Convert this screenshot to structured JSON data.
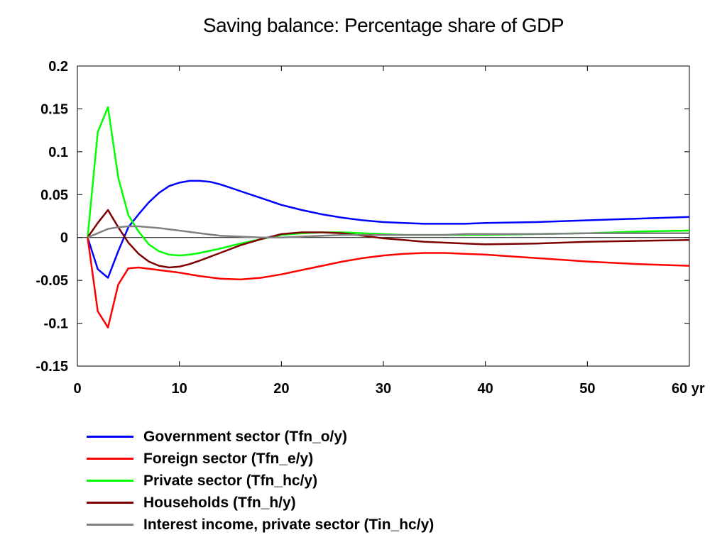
{
  "chart_data": {
    "type": "line",
    "title": "Saving balance: Percentage share of GDP",
    "xlabel": "",
    "ylabel": "",
    "xlim": [
      0,
      60
    ],
    "ylim": [
      -0.15,
      0.2
    ],
    "x_ticks": [
      "0",
      "10",
      "20",
      "30",
      "40",
      "50",
      "60 yr"
    ],
    "x_tick_values": [
      0,
      10,
      20,
      30,
      40,
      50,
      60
    ],
    "y_ticks": [
      "0.2",
      "0.15",
      "0.1",
      "0.05",
      "0",
      "-0.05",
      "-0.1",
      "-0.15"
    ],
    "y_tick_values": [
      0.2,
      0.15,
      0.1,
      0.05,
      0,
      -0.05,
      -0.1,
      -0.15
    ],
    "grid": false,
    "zero_line": true,
    "legend_position": "bottom",
    "series": [
      {
        "name": "Government sector (Tfn_o/y)",
        "color": "#0000ff",
        "points": [
          [
            1,
            0
          ],
          [
            2,
            -0.037
          ],
          [
            3,
            -0.047
          ],
          [
            4,
            -0.016
          ],
          [
            5,
            0.012
          ],
          [
            6,
            0.027
          ],
          [
            7,
            0.041
          ],
          [
            8,
            0.052
          ],
          [
            9,
            0.06
          ],
          [
            10,
            0.064
          ],
          [
            11,
            0.066
          ],
          [
            12,
            0.066
          ],
          [
            13,
            0.065
          ],
          [
            14,
            0.062
          ],
          [
            15,
            0.058
          ],
          [
            16,
            0.054
          ],
          [
            18,
            0.046
          ],
          [
            20,
            0.038
          ],
          [
            22,
            0.032
          ],
          [
            24,
            0.027
          ],
          [
            26,
            0.023
          ],
          [
            28,
            0.02
          ],
          [
            30,
            0.018
          ],
          [
            32,
            0.017
          ],
          [
            34,
            0.016
          ],
          [
            36,
            0.016
          ],
          [
            38,
            0.016
          ],
          [
            40,
            0.017
          ],
          [
            45,
            0.018
          ],
          [
            50,
            0.02
          ],
          [
            55,
            0.022
          ],
          [
            60,
            0.024
          ]
        ]
      },
      {
        "name": "Foreign sector (Tfn_e/y)",
        "color": "#ff0000",
        "points": [
          [
            1,
            0
          ],
          [
            2,
            -0.086
          ],
          [
            3,
            -0.105
          ],
          [
            4,
            -0.055
          ],
          [
            5,
            -0.036
          ],
          [
            6,
            -0.035
          ],
          [
            8,
            -0.038
          ],
          [
            10,
            -0.041
          ],
          [
            12,
            -0.045
          ],
          [
            14,
            -0.048
          ],
          [
            16,
            -0.049
          ],
          [
            18,
            -0.047
          ],
          [
            20,
            -0.043
          ],
          [
            22,
            -0.038
          ],
          [
            24,
            -0.033
          ],
          [
            26,
            -0.028
          ],
          [
            28,
            -0.024
          ],
          [
            30,
            -0.021
          ],
          [
            32,
            -0.019
          ],
          [
            34,
            -0.018
          ],
          [
            36,
            -0.018
          ],
          [
            38,
            -0.019
          ],
          [
            40,
            -0.02
          ],
          [
            45,
            -0.024
          ],
          [
            50,
            -0.028
          ],
          [
            55,
            -0.031
          ],
          [
            60,
            -0.033
          ]
        ]
      },
      {
        "name": "Private sector (Tfn_hc/y)",
        "color": "#00ff00",
        "points": [
          [
            1,
            0
          ],
          [
            2,
            0.123
          ],
          [
            3,
            0.152
          ],
          [
            4,
            0.07
          ],
          [
            5,
            0.026
          ],
          [
            6,
            0.007
          ],
          [
            7,
            -0.008
          ],
          [
            8,
            -0.016
          ],
          [
            9,
            -0.02
          ],
          [
            10,
            -0.021
          ],
          [
            11,
            -0.02
          ],
          [
            12,
            -0.018
          ],
          [
            14,
            -0.013
          ],
          [
            16,
            -0.007
          ],
          [
            18,
            -0.002
          ],
          [
            20,
            0.003
          ],
          [
            22,
            0.005
          ],
          [
            24,
            0.006
          ],
          [
            26,
            0.006
          ],
          [
            28,
            0.005
          ],
          [
            30,
            0.004
          ],
          [
            32,
            0.003
          ],
          [
            34,
            0.003
          ],
          [
            36,
            0.003
          ],
          [
            38,
            0.003
          ],
          [
            40,
            0.003
          ],
          [
            45,
            0.004
          ],
          [
            50,
            0.005
          ],
          [
            55,
            0.007
          ],
          [
            60,
            0.008
          ]
        ]
      },
      {
        "name": "Households (Tfn_h/y)",
        "color": "#7f0000",
        "points": [
          [
            1,
            0
          ],
          [
            2,
            0.017
          ],
          [
            3,
            0.032
          ],
          [
            4,
            0.012
          ],
          [
            5,
            -0.006
          ],
          [
            6,
            -0.019
          ],
          [
            7,
            -0.028
          ],
          [
            8,
            -0.033
          ],
          [
            9,
            -0.035
          ],
          [
            10,
            -0.034
          ],
          [
            11,
            -0.031
          ],
          [
            12,
            -0.027
          ],
          [
            14,
            -0.018
          ],
          [
            16,
            -0.009
          ],
          [
            18,
            -0.002
          ],
          [
            20,
            0.004
          ],
          [
            22,
            0.006
          ],
          [
            24,
            0.006
          ],
          [
            26,
            0.005
          ],
          [
            28,
            0.002
          ],
          [
            30,
            -0.001
          ],
          [
            32,
            -0.003
          ],
          [
            34,
            -0.005
          ],
          [
            36,
            -0.006
          ],
          [
            38,
            -0.007
          ],
          [
            40,
            -0.008
          ],
          [
            45,
            -0.007
          ],
          [
            50,
            -0.005
          ],
          [
            55,
            -0.004
          ],
          [
            60,
            -0.003
          ]
        ]
      },
      {
        "name": "Interest income, private sector (Tin_hc/y)",
        "color": "#808080",
        "points": [
          [
            1,
            0
          ],
          [
            2,
            0.005
          ],
          [
            3,
            0.01
          ],
          [
            4,
            0.012
          ],
          [
            5,
            0.013
          ],
          [
            6,
            0.013
          ],
          [
            7,
            0.012
          ],
          [
            8,
            0.011
          ],
          [
            10,
            0.008
          ],
          [
            12,
            0.005
          ],
          [
            14,
            0.002
          ],
          [
            16,
            0.001
          ],
          [
            18,
            0
          ],
          [
            20,
            0
          ],
          [
            22,
            0.001
          ],
          [
            24,
            0.002
          ],
          [
            26,
            0.003
          ],
          [
            28,
            0.003
          ],
          [
            30,
            0.003
          ],
          [
            32,
            0.003
          ],
          [
            34,
            0.003
          ],
          [
            36,
            0.003
          ],
          [
            38,
            0.004
          ],
          [
            40,
            0.004
          ],
          [
            45,
            0.004
          ],
          [
            50,
            0.005
          ],
          [
            55,
            0.005
          ],
          [
            60,
            0.005
          ]
        ]
      }
    ]
  }
}
